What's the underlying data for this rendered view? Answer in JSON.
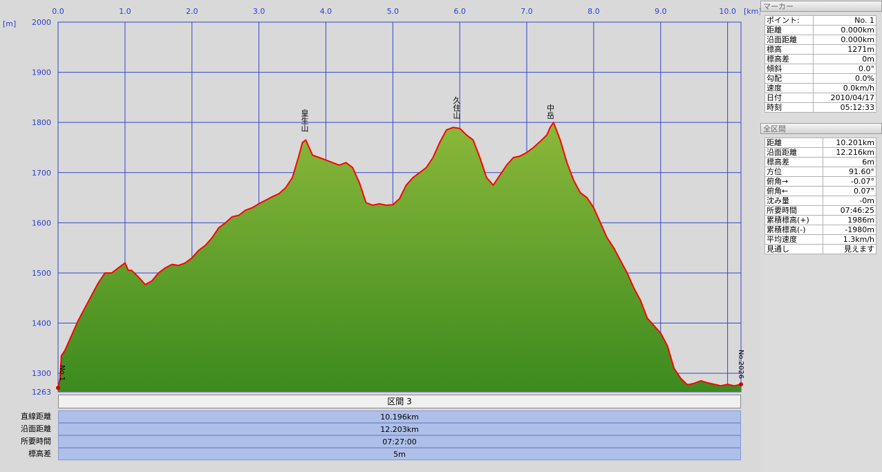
{
  "chart_data": {
    "type": "area",
    "units": {
      "x": "[km]",
      "y": "[m]"
    },
    "xlim": [
      0,
      10.2
    ],
    "ylim": [
      1263,
      2000
    ],
    "x_ticks": [
      "0.0",
      "1.0",
      "2.0",
      "3.0",
      "4.0",
      "5.0",
      "6.0",
      "7.0",
      "8.0",
      "9.0",
      "10.0"
    ],
    "y_ticks": [
      "2000",
      "1900",
      "1800",
      "1700",
      "1600",
      "1500",
      "1400",
      "1300"
    ],
    "y_min_label": "1263",
    "series": [
      {
        "x": [
          0,
          0.03,
          0.05,
          0.1,
          0.2,
          0.3,
          0.4,
          0.5,
          0.6,
          0.7,
          0.8,
          0.9,
          1.0,
          1.05,
          1.1,
          1.2,
          1.3,
          1.4,
          1.5,
          1.6,
          1.7,
          1.8,
          1.9,
          2.0,
          2.1,
          2.2,
          2.3,
          2.4,
          2.5,
          2.6,
          2.7,
          2.8,
          2.9,
          3.0,
          3.1,
          3.2,
          3.3,
          3.4,
          3.5,
          3.6,
          3.65,
          3.7,
          3.75,
          3.8,
          3.9,
          4.0,
          4.1,
          4.2,
          4.3,
          4.4,
          4.5,
          4.6,
          4.7,
          4.8,
          4.9,
          5.0,
          5.1,
          5.2,
          5.3,
          5.4,
          5.5,
          5.6,
          5.7,
          5.8,
          5.9,
          6.0,
          6.1,
          6.2,
          6.3,
          6.4,
          6.5,
          6.6,
          6.7,
          6.8,
          6.9,
          7.0,
          7.1,
          7.2,
          7.3,
          7.35,
          7.4,
          7.5,
          7.6,
          7.7,
          7.8,
          7.9,
          8.0,
          8.1,
          8.2,
          8.3,
          8.4,
          8.5,
          8.6,
          8.7,
          8.8,
          8.9,
          9.0,
          9.1,
          9.2,
          9.3,
          9.4,
          9.5,
          9.6,
          9.7,
          9.8,
          9.9,
          10.0,
          10.1,
          10.2
        ],
        "y": [
          1271,
          1290,
          1335,
          1345,
          1375,
          1405,
          1430,
          1455,
          1480,
          1500,
          1500,
          1510,
          1520,
          1505,
          1505,
          1492,
          1477,
          1484,
          1500,
          1510,
          1517,
          1515,
          1520,
          1530,
          1545,
          1555,
          1570,
          1590,
          1600,
          1612,
          1615,
          1625,
          1630,
          1638,
          1645,
          1652,
          1658,
          1670,
          1690,
          1735,
          1760,
          1765,
          1750,
          1735,
          1730,
          1725,
          1720,
          1715,
          1720,
          1710,
          1680,
          1640,
          1635,
          1638,
          1635,
          1636,
          1648,
          1675,
          1690,
          1700,
          1710,
          1730,
          1760,
          1785,
          1790,
          1788,
          1775,
          1765,
          1730,
          1690,
          1675,
          1695,
          1715,
          1730,
          1733,
          1740,
          1750,
          1762,
          1775,
          1790,
          1800,
          1765,
          1720,
          1685,
          1660,
          1650,
          1630,
          1600,
          1570,
          1550,
          1525,
          1500,
          1470,
          1445,
          1410,
          1395,
          1380,
          1355,
          1310,
          1290,
          1277,
          1280,
          1285,
          1281,
          1278,
          1275,
          1278,
          1275,
          1278
        ]
      }
    ],
    "peaks": [
      {
        "label": "皇生山",
        "x": 3.68
      },
      {
        "label": "久住山",
        "x": 5.95
      },
      {
        "label": "中岳",
        "x": 7.35
      }
    ],
    "start_marker": "No.1",
    "end_marker": "No.2026",
    "colors": {
      "grid": "#3344cc",
      "line": "#ff0000",
      "fill_top": "#8bb83a",
      "fill_bottom": "#3c8a1e",
      "axis_text": "#2a3fd0"
    }
  },
  "section": {
    "header": "区間 3",
    "rows": [
      {
        "label": "直線距離",
        "value": "10.196km"
      },
      {
        "label": "沿面距離",
        "value": "12.203km"
      },
      {
        "label": "所要時間",
        "value": "07:27:00"
      },
      {
        "label": "標高差",
        "value": "5m"
      }
    ]
  },
  "marker_panel": {
    "title": "マーカー",
    "rows": [
      {
        "k": "ポイント:",
        "v": "No. 1"
      },
      {
        "k": "距離",
        "v": "0.000km"
      },
      {
        "k": "沿面距離",
        "v": "0.000km"
      },
      {
        "k": "標高",
        "v": "1271m"
      },
      {
        "k": "標高差",
        "v": "0m"
      },
      {
        "k": "傾斜",
        "v": "0.0°"
      },
      {
        "k": "勾配",
        "v": "0.0%"
      },
      {
        "k": "速度",
        "v": "0.0km/h"
      },
      {
        "k": "日付",
        "v": "2010/04/17"
      },
      {
        "k": "時刻",
        "v": "05:12:33"
      }
    ]
  },
  "total_panel": {
    "title": "全区間",
    "rows": [
      {
        "k": "距離",
        "v": "10.201km"
      },
      {
        "k": "沿面距離",
        "v": "12.216km"
      },
      {
        "k": "標高差",
        "v": "6m"
      },
      {
        "k": "方位",
        "v": "91.60°"
      },
      {
        "k": "俯角→",
        "v": "-0.07°"
      },
      {
        "k": "俯角←",
        "v": "0.07°"
      },
      {
        "k": "沈み量",
        "v": "-0m"
      },
      {
        "k": "所要時間",
        "v": "07:46:25"
      },
      {
        "k": "累積標高(+)",
        "v": "1986m"
      },
      {
        "k": "累積標高(-)",
        "v": "-1980m"
      },
      {
        "k": "平均速度",
        "v": "1.3km/h"
      },
      {
        "k": "見通し",
        "v": "見えます"
      }
    ]
  }
}
